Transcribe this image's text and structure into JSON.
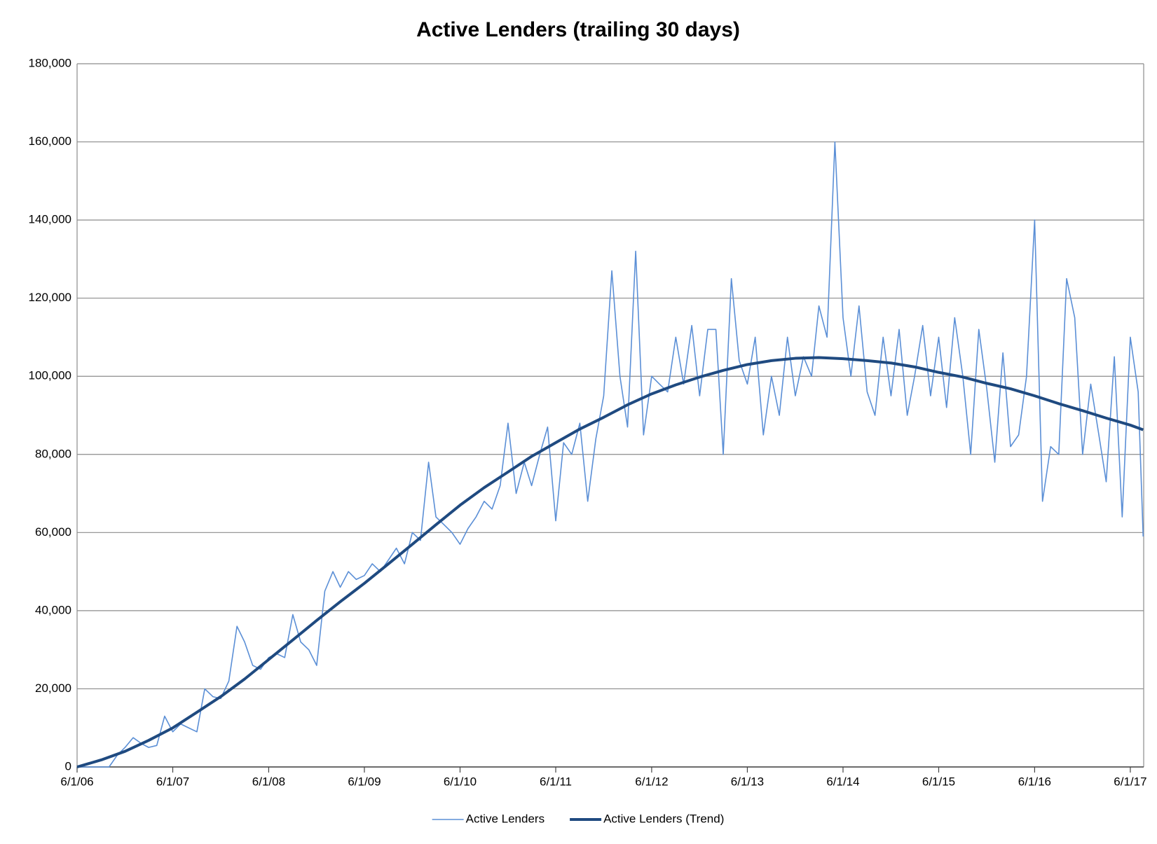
{
  "chart_data": {
    "type": "line",
    "title": "Active Lenders (trailing 30 days)",
    "xlim": [
      "2006-06-01",
      "2017-07-22"
    ],
    "xticks": [
      {
        "value": "2006-06-01",
        "label": "6/1/06"
      },
      {
        "value": "2007-06-01",
        "label": "6/1/07"
      },
      {
        "value": "2008-06-01",
        "label": "6/1/08"
      },
      {
        "value": "2009-06-01",
        "label": "6/1/09"
      },
      {
        "value": "2010-06-01",
        "label": "6/1/10"
      },
      {
        "value": "2011-06-01",
        "label": "6/1/11"
      },
      {
        "value": "2012-06-01",
        "label": "6/1/12"
      },
      {
        "value": "2013-06-01",
        "label": "6/1/13"
      },
      {
        "value": "2014-06-01",
        "label": "6/1/14"
      },
      {
        "value": "2015-06-01",
        "label": "6/1/15"
      },
      {
        "value": "2016-06-01",
        "label": "6/1/16"
      },
      {
        "value": "2017-06-01",
        "label": "6/1/17"
      }
    ],
    "ylim": [
      0,
      180000
    ],
    "yticks": [
      0,
      {
        "value": 20000,
        "label": "20,000"
      },
      {
        "value": 40000,
        "label": "40,000"
      },
      {
        "value": 60000,
        "label": "60,000"
      },
      {
        "value": 80000,
        "label": "80,000"
      },
      {
        "value": 100000,
        "label": "100,000"
      },
      {
        "value": 120000,
        "label": "120,000"
      },
      {
        "value": 140000,
        "label": "140,000"
      },
      {
        "value": 160000,
        "label": "160,000"
      },
      {
        "value": 180000,
        "label": "180,000"
      }
    ],
    "grid": true,
    "legend": "bottom",
    "series": [
      {
        "name": "Active Lenders",
        "color": "#5b8fd6",
        "x": [
          "2006-06-01",
          "2006-07-01",
          "2006-08-01",
          "2006-09-01",
          "2006-10-01",
          "2006-11-01",
          "2006-12-01",
          "2007-01-01",
          "2007-02-01",
          "2007-03-01",
          "2007-04-01",
          "2007-05-01",
          "2007-06-01",
          "2007-07-01",
          "2007-08-01",
          "2007-09-01",
          "2007-10-01",
          "2007-11-01",
          "2007-12-01",
          "2008-01-01",
          "2008-02-01",
          "2008-03-01",
          "2008-04-01",
          "2008-05-01",
          "2008-06-01",
          "2008-07-01",
          "2008-08-01",
          "2008-09-01",
          "2008-10-01",
          "2008-11-01",
          "2008-12-01",
          "2009-01-01",
          "2009-02-01",
          "2009-03-01",
          "2009-04-01",
          "2009-05-01",
          "2009-06-01",
          "2009-07-01",
          "2009-08-01",
          "2009-09-01",
          "2009-10-01",
          "2009-11-01",
          "2009-12-01",
          "2010-01-01",
          "2010-02-01",
          "2010-03-01",
          "2010-04-01",
          "2010-05-01",
          "2010-06-01",
          "2010-07-01",
          "2010-08-01",
          "2010-09-01",
          "2010-10-01",
          "2010-11-01",
          "2010-12-01",
          "2011-01-01",
          "2011-02-01",
          "2011-03-01",
          "2011-04-01",
          "2011-05-01",
          "2011-06-01",
          "2011-07-01",
          "2011-08-01",
          "2011-09-01",
          "2011-10-01",
          "2011-11-01",
          "2011-12-01",
          "2012-01-01",
          "2012-02-01",
          "2012-03-01",
          "2012-04-01",
          "2012-05-01",
          "2012-06-01",
          "2012-07-01",
          "2012-08-01",
          "2012-09-01",
          "2012-10-01",
          "2012-11-01",
          "2012-12-01",
          "2013-01-01",
          "2013-02-01",
          "2013-03-01",
          "2013-04-01",
          "2013-05-01",
          "2013-06-01",
          "2013-07-01",
          "2013-08-01",
          "2013-09-01",
          "2013-10-01",
          "2013-11-01",
          "2013-12-01",
          "2014-01-01",
          "2014-02-01",
          "2014-03-01",
          "2014-04-01",
          "2014-05-01",
          "2014-06-01",
          "2014-07-01",
          "2014-08-01",
          "2014-09-01",
          "2014-10-01",
          "2014-11-01",
          "2014-12-01",
          "2015-01-01",
          "2015-02-01",
          "2015-03-01",
          "2015-04-01",
          "2015-05-01",
          "2015-06-01",
          "2015-07-01",
          "2015-08-01",
          "2015-09-01",
          "2015-10-01",
          "2015-11-01",
          "2015-12-01",
          "2016-01-01",
          "2016-02-01",
          "2016-03-01",
          "2016-04-01",
          "2016-05-01",
          "2016-06-01",
          "2016-07-01",
          "2016-08-01",
          "2016-09-01",
          "2016-10-01",
          "2016-11-01",
          "2016-12-01",
          "2017-01-01",
          "2017-02-01",
          "2017-03-01",
          "2017-04-01",
          "2017-05-01",
          "2017-06-01",
          "2017-07-01",
          "2017-07-20"
        ],
        "values": [
          0,
          0,
          0,
          0,
          0,
          3000,
          5000,
          7500,
          6000,
          5000,
          5500,
          13000,
          9000,
          11000,
          10000,
          9000,
          20000,
          18000,
          17500,
          22000,
          36000,
          32000,
          26000,
          25000,
          28000,
          29000,
          28000,
          39000,
          32000,
          30000,
          26000,
          45000,
          50000,
          46000,
          50000,
          48000,
          49000,
          52000,
          50000,
          53000,
          56000,
          52000,
          60000,
          58000,
          78000,
          64000,
          62000,
          60000,
          57000,
          61000,
          64000,
          68000,
          66000,
          72000,
          88000,
          70000,
          78000,
          72000,
          80000,
          87000,
          63000,
          83000,
          80000,
          88000,
          68000,
          84000,
          95000,
          127000,
          100000,
          87000,
          132000,
          85000,
          100000,
          98000,
          96000,
          110000,
          98000,
          113000,
          95000,
          112000,
          112000,
          80000,
          125000,
          104000,
          98000,
          110000,
          85000,
          100000,
          90000,
          110000,
          95000,
          105000,
          100000,
          118000,
          110000,
          160000,
          115000,
          100000,
          118000,
          96000,
          90000,
          110000,
          95000,
          112000,
          90000,
          100000,
          113000,
          95000,
          110000,
          92000,
          115000,
          100000,
          80000,
          112000,
          97000,
          78000,
          106000,
          82000,
          85000,
          100000,
          140000,
          68000,
          82000,
          80000,
          125000,
          115000,
          80000,
          98000,
          85000,
          73000,
          105000,
          64000,
          110000,
          96000,
          59000
        ]
      },
      {
        "name": "Active Lenders (Trend)",
        "color": "#1f4a80",
        "x": [
          "2006-06-01",
          "2006-09-01",
          "2006-12-01",
          "2007-03-01",
          "2007-06-01",
          "2007-09-01",
          "2007-12-01",
          "2008-03-01",
          "2008-06-01",
          "2008-09-01",
          "2008-12-01",
          "2009-03-01",
          "2009-06-01",
          "2009-09-01",
          "2009-12-01",
          "2010-03-01",
          "2010-06-01",
          "2010-09-01",
          "2010-12-01",
          "2011-03-01",
          "2011-06-01",
          "2011-09-01",
          "2011-12-01",
          "2012-03-01",
          "2012-06-01",
          "2012-09-01",
          "2012-12-01",
          "2013-03-01",
          "2013-06-01",
          "2013-09-01",
          "2013-12-01",
          "2014-03-01",
          "2014-06-01",
          "2014-09-01",
          "2014-12-01",
          "2015-03-01",
          "2015-06-01",
          "2015-09-01",
          "2015-12-01",
          "2016-03-01",
          "2016-06-01",
          "2016-09-01",
          "2016-12-01",
          "2017-03-01",
          "2017-06-01",
          "2017-07-20"
        ],
        "values": [
          0,
          1800,
          4000,
          6800,
          10000,
          14000,
          18000,
          22500,
          27500,
          32500,
          37500,
          42300,
          47000,
          52000,
          57000,
          62000,
          67000,
          71500,
          75500,
          79500,
          83000,
          86500,
          89500,
          92700,
          95500,
          97800,
          99800,
          101500,
          103000,
          104000,
          104600,
          104800,
          104500,
          104000,
          103400,
          102400,
          101000,
          99800,
          98200,
          96800,
          95000,
          93000,
          91200,
          89300,
          87500,
          86300
        ]
      }
    ]
  }
}
